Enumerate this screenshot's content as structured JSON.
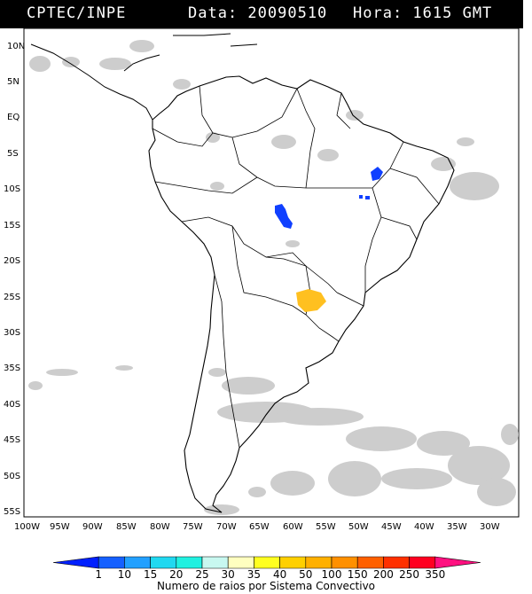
{
  "header": {
    "source": "CPTEC/INPE",
    "date_label": "Data: 20090510",
    "time_label": "Hora: 1615 GMT"
  },
  "axes": {
    "lat_labels": [
      "10N",
      "5N",
      "EQ",
      "5S",
      "10S",
      "15S",
      "20S",
      "25S",
      "30S",
      "35S",
      "40S",
      "45S",
      "50S",
      "55S"
    ],
    "lon_labels": [
      "100W",
      "95W",
      "90W",
      "85W",
      "80W",
      "75W",
      "70W",
      "65W",
      "60W",
      "55W",
      "50W",
      "45W",
      "40W",
      "35W",
      "30W"
    ]
  },
  "colorbar": {
    "labels": [
      "1",
      "10",
      "15",
      "20",
      "25",
      "30",
      "35",
      "40",
      "50",
      "100",
      "150",
      "200",
      "250",
      "350"
    ],
    "colors": [
      "#0020ff",
      "#1560ff",
      "#22a0ff",
      "#20d8f0",
      "#20f0e0",
      "#c8f8f0",
      "#ffffc0",
      "#ffff20",
      "#ffd000",
      "#ffb000",
      "#ff9000",
      "#ff6000",
      "#ff3000",
      "#ff0020",
      "#ff1080"
    ],
    "caption": "Numero de raios por Sistema Convectivo"
  },
  "colors": {
    "cloud": "#c8c8c8",
    "storm_blue": "#1040ff",
    "storm_orange": "#ffc020"
  }
}
